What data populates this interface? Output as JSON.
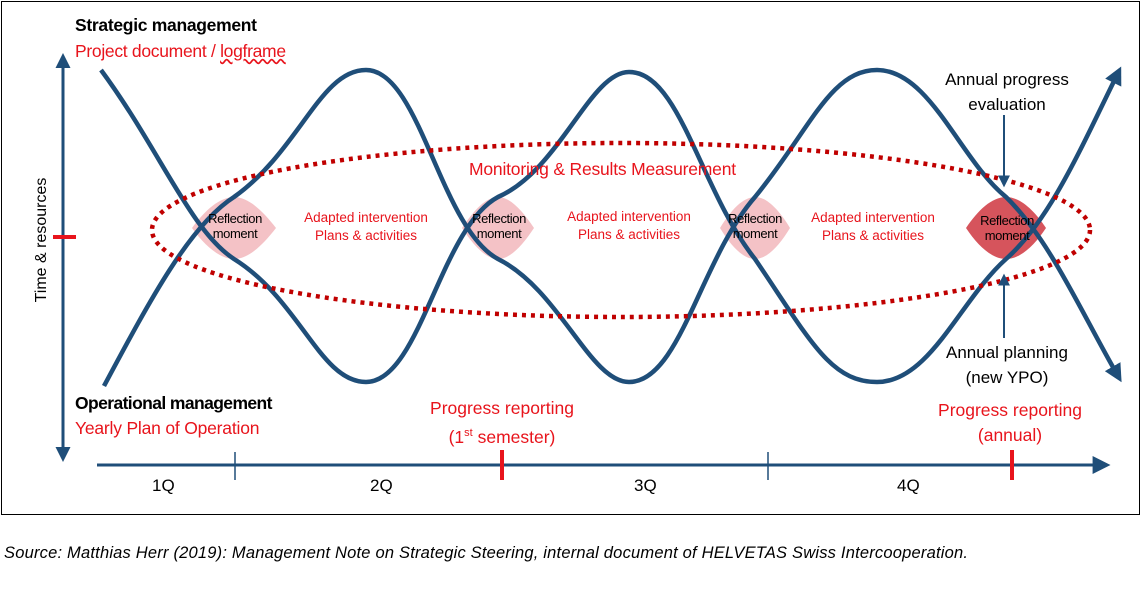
{
  "strategic": {
    "title": "Strategic management",
    "subtitle_pre": "Project document / ",
    "subtitle_link": "logframe"
  },
  "operational": {
    "title": "Operational management",
    "subtitle": "Yearly Plan of Operation"
  },
  "axis_label": "Time & resources",
  "monitoring_label": "Monitoring & Results Measurement",
  "reflection": {
    "line1": "Reflection",
    "line2": "moment"
  },
  "adapted": {
    "line1": "Adapted intervention",
    "line2": "Plans & activities"
  },
  "annual_progress": {
    "line1": "Annual progress",
    "line2": "evaluation"
  },
  "annual_planning": {
    "line1": "Annual planning",
    "line2": "(new YPO)"
  },
  "progress_semester": {
    "line1": "Progress reporting",
    "line2_pre": "(1",
    "line2_sup": "st",
    "line2_post": " semester)"
  },
  "progress_annual": {
    "line1": "Progress reporting",
    "line2": "(annual)"
  },
  "quarters": [
    "1Q",
    "2Q",
    "3Q",
    "4Q"
  ],
  "source": "Source: Matthias Herr (2019): Management Note on Strategic Steering, internal document of HELVETAS Swiss Intercooperation.",
  "colors": {
    "curve": "#1f4e79",
    "red": "#e8141c",
    "pink_fill": "#f4c2c6",
    "dark_red_fill": "#d6545c",
    "dotted": "#c00000"
  }
}
